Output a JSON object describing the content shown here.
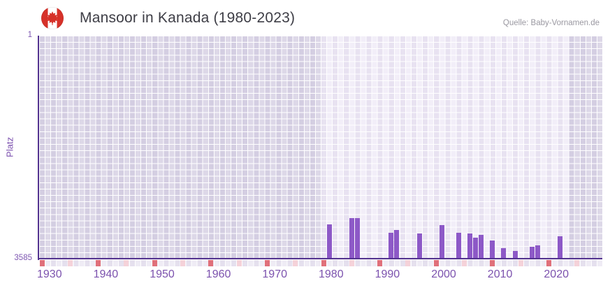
{
  "header": {
    "title": "Mansoor in Kanada (1980-2023)",
    "source": "Quelle: Baby-Vornamen.de",
    "flag_icon": "canada-flag-icon"
  },
  "chart_data": {
    "type": "bar",
    "title": "Mansoor in Kanada (1980-2023)",
    "xlabel": "",
    "ylabel": "Platz",
    "y_axis": {
      "top_tick": "1",
      "bottom_tick": "3585",
      "min": 1,
      "max": 3585,
      "inverted": true
    },
    "x_axis": {
      "start_year": 1930,
      "end_year": 2029,
      "major_ticks": [
        1930,
        1940,
        1950,
        1960,
        1970,
        1980,
        1990,
        2000,
        2010,
        2020
      ],
      "minor_ticks": [
        1935,
        1945,
        1955,
        1965,
        1975,
        1985,
        1995,
        2005,
        2015,
        2025
      ]
    },
    "highlight_period": {
      "start": 1980,
      "end": 2023
    },
    "grid": true,
    "legend_position": "none",
    "series": [
      {
        "name": "Mansoor",
        "points": [
          {
            "year": 1981,
            "platz": 3035
          },
          {
            "year": 1985,
            "platz": 2930
          },
          {
            "year": 1986,
            "platz": 2930
          },
          {
            "year": 1992,
            "platz": 3165
          },
          {
            "year": 1993,
            "platz": 3120
          },
          {
            "year": 1997,
            "platz": 3180
          },
          {
            "year": 2001,
            "platz": 3050
          },
          {
            "year": 2004,
            "platz": 3165
          },
          {
            "year": 2006,
            "platz": 3180
          },
          {
            "year": 2007,
            "platz": 3245
          },
          {
            "year": 2008,
            "platz": 3205
          },
          {
            "year": 2010,
            "platz": 3295
          },
          {
            "year": 2012,
            "platz": 3415
          },
          {
            "year": 2014,
            "platz": 3465
          },
          {
            "year": 2017,
            "platz": 3395
          },
          {
            "year": 2018,
            "platz": 3370
          },
          {
            "year": 2022,
            "platz": 3230
          }
        ]
      }
    ]
  },
  "colors": {
    "bar": "#8d59c7",
    "axis_line": "#53338f",
    "axis_text": "#7e57b2",
    "title_text": "#3e3e46",
    "source_text": "#9a98a1",
    "plot_dark_band": "#ddd8e8",
    "plot_light_band": "#f2eef8",
    "bottom_strip": "#efecf5",
    "major_tick_cell": "#e0707a",
    "minor_tick_cell": "#f5d2d9",
    "grid_line": "#ffffff",
    "flag_red": "#d63129",
    "flag_white": "#ffffff"
  }
}
